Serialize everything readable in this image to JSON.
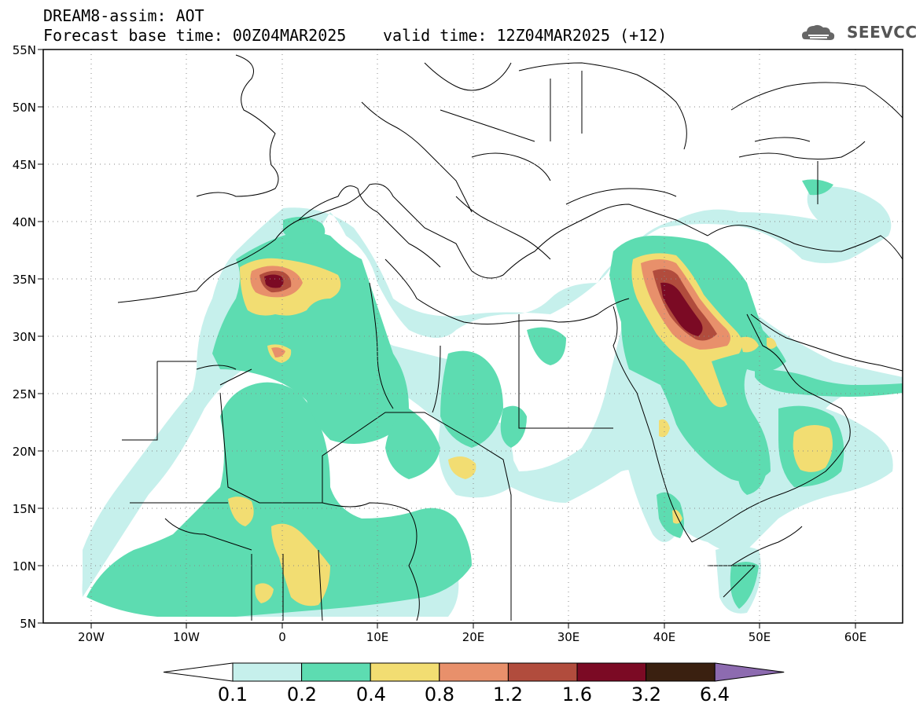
{
  "header": {
    "title": "DREAM8-assim: AOT",
    "base_time": "Forecast base time: 00Z04MAR2025",
    "valid_time": "valid time: 12Z04MAR2025 (+12)"
  },
  "logo": {
    "text": "SEEVCCC",
    "icon": "cloud-icon"
  },
  "axes": {
    "lat_ticks": [
      "55N",
      "50N",
      "45N",
      "40N",
      "35N",
      "30N",
      "25N",
      "20N",
      "15N",
      "10N",
      "5N"
    ],
    "lon_ticks": [
      "20W",
      "10W",
      "0",
      "10E",
      "20E",
      "30E",
      "40E",
      "50E",
      "60E"
    ],
    "lon_range": [
      -25,
      65
    ],
    "lat_range": [
      5,
      55
    ],
    "grid": "dotted"
  },
  "legend": {
    "labels": [
      "0.1",
      "0.2",
      "0.4",
      "0.8",
      "1.2",
      "1.6",
      "3.2",
      "6.4"
    ],
    "colors": [
      "#c6f0ec",
      "#5ddcb1",
      "#f2dd72",
      "#e8906b",
      "#b14c3d",
      "#7b0a24",
      "#3a2010",
      "#8d6bb0"
    ]
  },
  "palette": {
    "level1": "#c6f0ec",
    "level2": "#5ddcb1",
    "level3": "#f2dd72",
    "level4": "#e8906b",
    "level5": "#b14c3d",
    "level6": "#7b0a24",
    "border": "#000000"
  }
}
